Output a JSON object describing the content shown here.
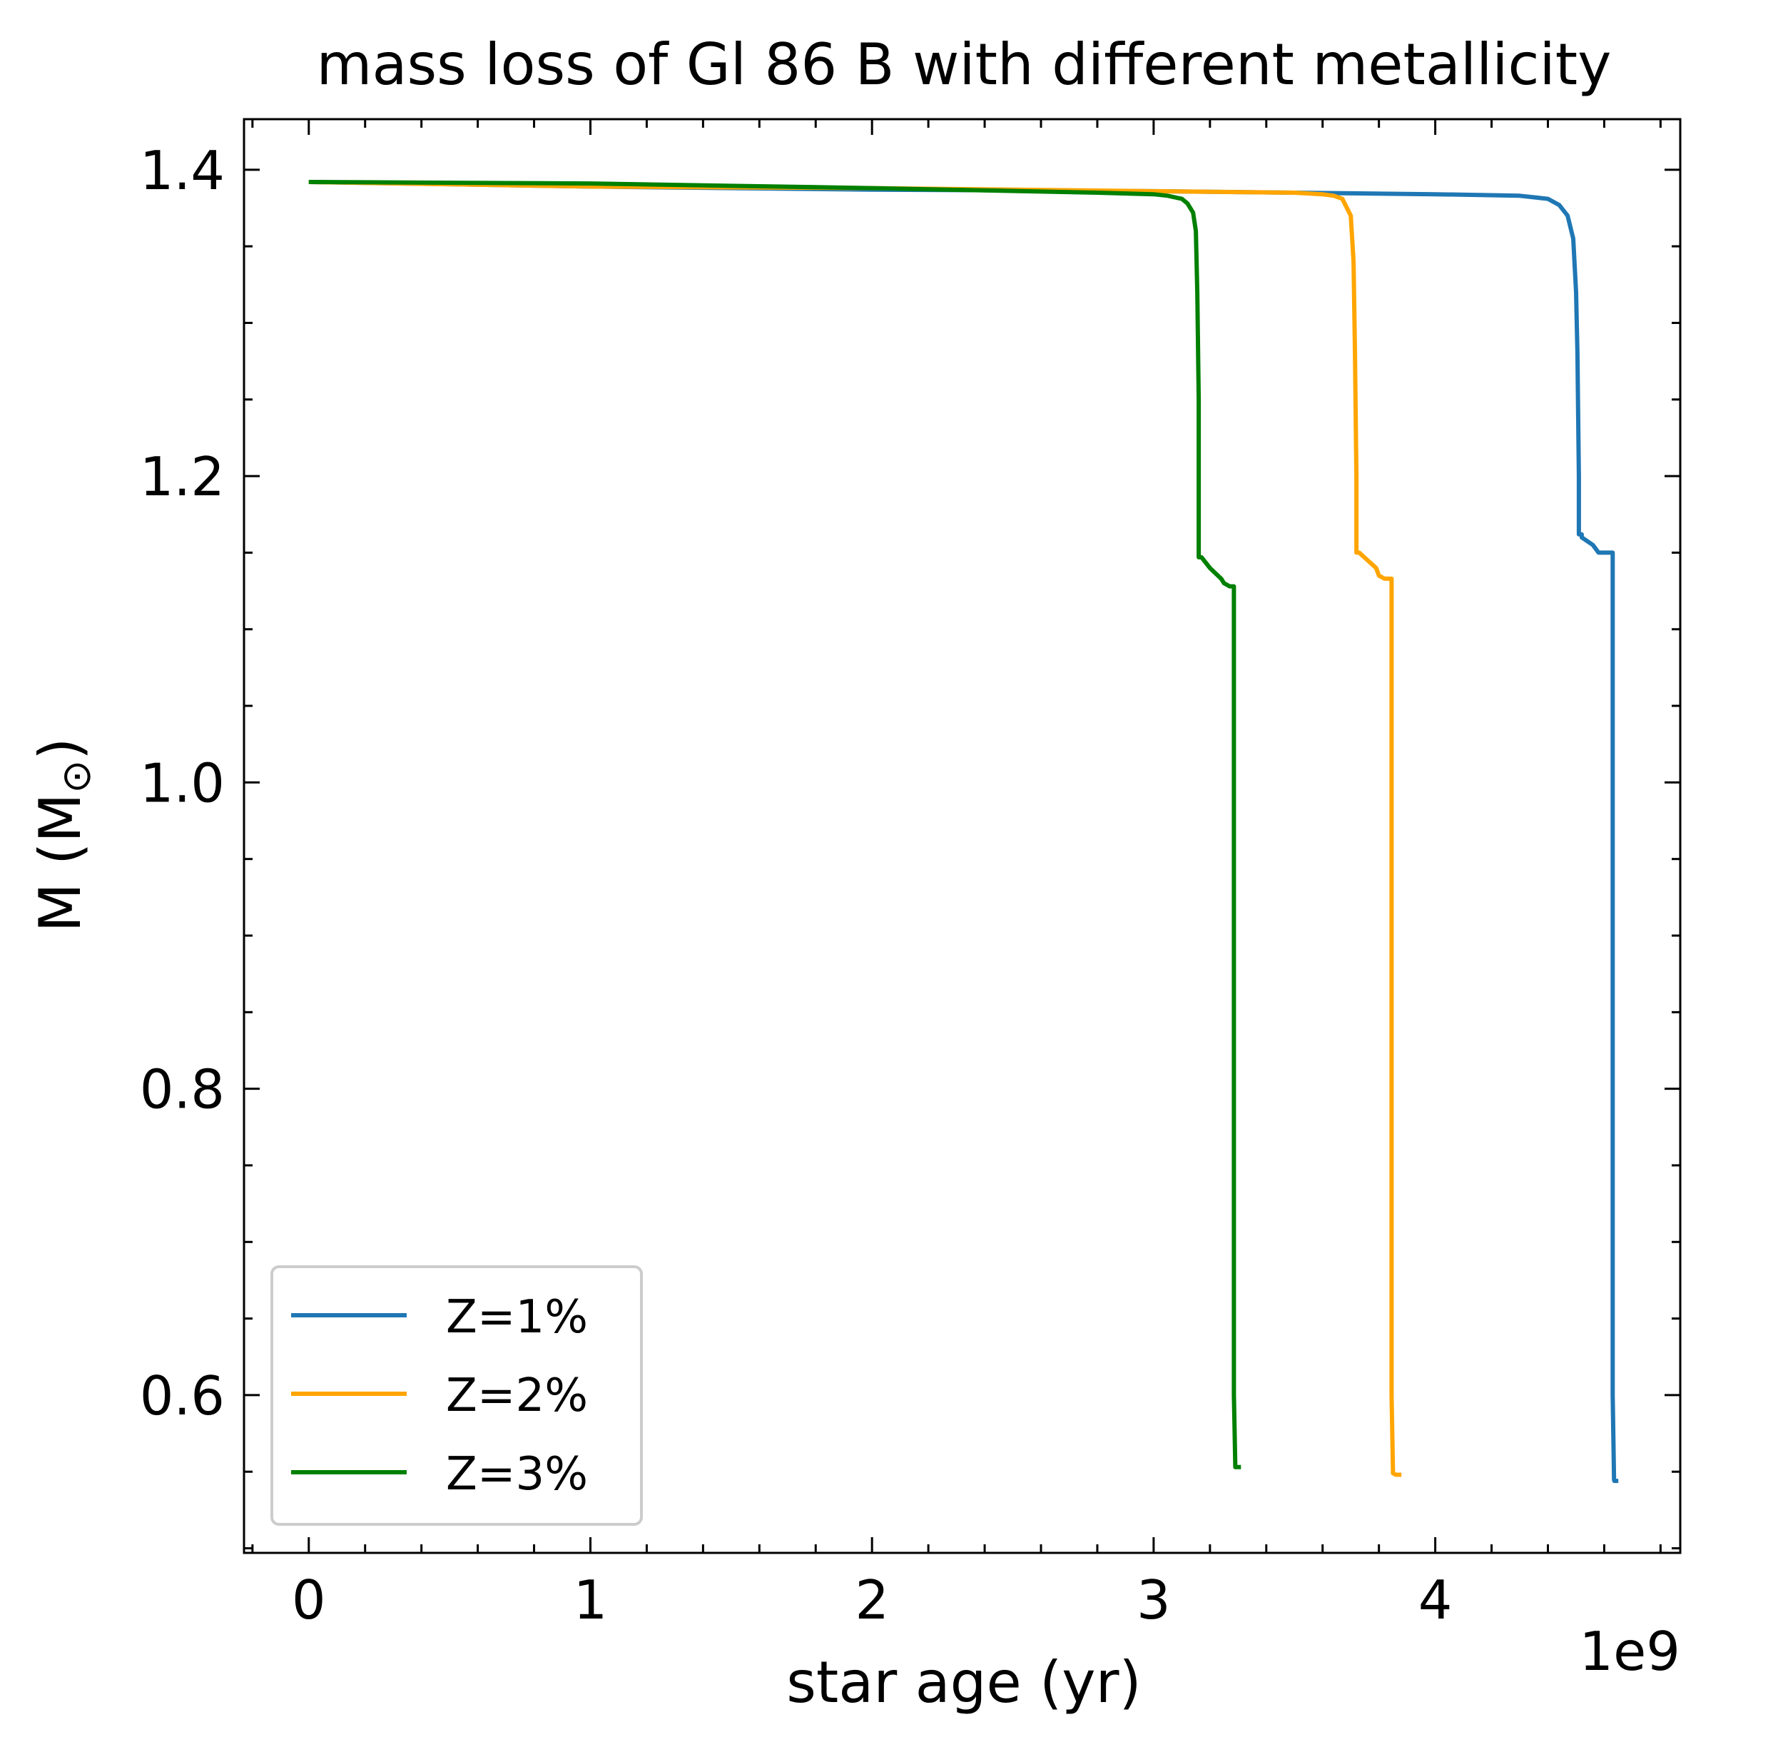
{
  "chart_data": {
    "type": "line",
    "title": "mass loss of Gl 86 B with different metallicity",
    "xlabel": "star age (yr)",
    "ylabel": "M (M",
    "ylabel_sub": "⊙",
    "ylabel_close": ")",
    "x_offset_label": "1e9",
    "xlim": [
      -0.23,
      4.87
    ],
    "ylim": [
      0.497,
      1.433
    ],
    "x_ticks": [
      0,
      1,
      2,
      3,
      4
    ],
    "x_tick_labels": [
      "0",
      "1",
      "2",
      "3",
      "4"
    ],
    "x_minor_step": 0.2,
    "y_ticks": [
      0.6,
      0.8,
      1.0,
      1.2,
      1.4
    ],
    "y_tick_labels": [
      "0.6",
      "0.8",
      "1.0",
      "1.2",
      "1.4"
    ],
    "y_minor_step": 0.05,
    "grid": false,
    "legend_position": "lower-left",
    "series": [
      {
        "name": "Z=1%",
        "color": "#1f77b4",
        "x": [
          0.0,
          1.0,
          2.0,
          3.0,
          4.0,
          4.3,
          4.4,
          4.44,
          4.47,
          4.49,
          4.5,
          4.505,
          4.51,
          4.51,
          4.52,
          4.52,
          4.56,
          4.58,
          4.6,
          4.605,
          4.63,
          4.63,
          4.635,
          4.636,
          4.65
        ],
        "y": [
          1.392,
          1.389,
          1.387,
          1.386,
          1.384,
          1.383,
          1.381,
          1.377,
          1.37,
          1.355,
          1.32,
          1.28,
          1.2,
          1.162,
          1.162,
          1.16,
          1.155,
          1.15,
          1.15,
          1.15,
          1.15,
          0.6,
          0.545,
          0.544,
          0.544
        ]
      },
      {
        "name": "Z=2%",
        "color": "#ffa500",
        "x": [
          0.0,
          1.0,
          2.0,
          3.0,
          3.5,
          3.6,
          3.64,
          3.67,
          3.7,
          3.71,
          3.715,
          3.72,
          3.72,
          3.73,
          3.76,
          3.79,
          3.8,
          3.82,
          3.84,
          3.845,
          3.845,
          3.85,
          3.86,
          3.88
        ],
        "y": [
          1.392,
          1.389,
          1.388,
          1.386,
          1.385,
          1.384,
          1.383,
          1.381,
          1.37,
          1.34,
          1.28,
          1.2,
          1.15,
          1.15,
          1.145,
          1.14,
          1.135,
          1.133,
          1.133,
          1.133,
          0.6,
          0.549,
          0.548,
          0.548
        ]
      },
      {
        "name": "Z=3%",
        "color": "#008000",
        "x": [
          0.0,
          1.0,
          2.0,
          2.8,
          3.0,
          3.05,
          3.1,
          3.12,
          3.14,
          3.15,
          3.155,
          3.16,
          3.16,
          3.17,
          3.2,
          3.24,
          3.25,
          3.27,
          3.28,
          3.285,
          3.285,
          3.29,
          3.3,
          3.31
        ],
        "y": [
          1.392,
          1.391,
          1.388,
          1.385,
          1.384,
          1.383,
          1.381,
          1.378,
          1.372,
          1.36,
          1.32,
          1.25,
          1.147,
          1.147,
          1.14,
          1.133,
          1.13,
          1.128,
          1.128,
          1.128,
          0.6,
          0.553,
          0.553,
          0.553
        ]
      }
    ]
  }
}
